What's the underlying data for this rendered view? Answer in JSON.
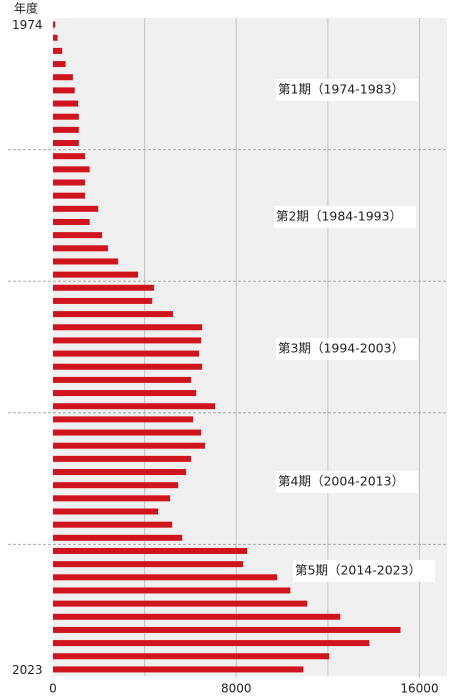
{
  "chart_data": {
    "type": "barh",
    "y_label": "年度",
    "categories": [
      "1974",
      null,
      null,
      null,
      null,
      null,
      null,
      null,
      null,
      null,
      null,
      null,
      null,
      null,
      null,
      null,
      null,
      null,
      null,
      null,
      null,
      null,
      null,
      null,
      null,
      null,
      null,
      null,
      null,
      null,
      null,
      null,
      null,
      null,
      null,
      null,
      null,
      null,
      null,
      null,
      null,
      null,
      null,
      null,
      null,
      null,
      null,
      null,
      null,
      "2023"
    ],
    "values": [
      100,
      200,
      400,
      550,
      870,
      950,
      1100,
      1130,
      1130,
      1130,
      1400,
      1600,
      1400,
      1400,
      1970,
      1600,
      2140,
      2400,
      2840,
      3710,
      4410,
      4330,
      5240,
      6510,
      6470,
      6380,
      6510,
      6030,
      6250,
      7080,
      6120,
      6470,
      6640,
      6030,
      5810,
      5460,
      5110,
      4590,
      5200,
      5640,
      8480,
      8300,
      9790,
      10360,
      11100,
      12540,
      15170,
      13810,
      12060,
      10930
    ],
    "color": "#d0141e",
    "xlim": [
      0,
      17200
    ],
    "xticks": [
      0,
      8000,
      16000
    ],
    "xgrid": [
      4000,
      8000,
      12000,
      16000
    ],
    "annotations": [
      "第1期（1974-1983）",
      "第2期（1984-1993）",
      "第3期（1994-2003）",
      "第4期（2004-2013）",
      "第5期（2014-2023）"
    ]
  }
}
